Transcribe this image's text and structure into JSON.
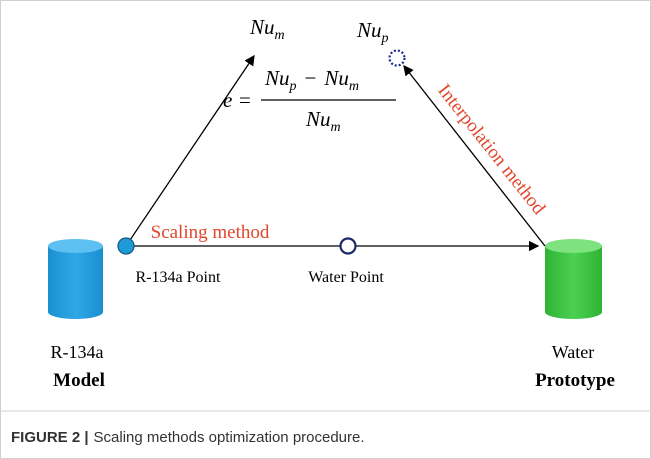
{
  "diagram": {
    "top_left": {
      "base": "Nu",
      "sub": "m"
    },
    "top_right": {
      "base": "Nu",
      "sub": "p"
    },
    "equation": {
      "lhs": "e =",
      "numerator": {
        "a": {
          "base": "Nu",
          "sub": "p"
        },
        "op": "−",
        "b": {
          "base": "Nu",
          "sub": "m"
        }
      },
      "denominator": {
        "base": "Nu",
        "sub": "m"
      }
    },
    "interpolation_label": "Interpolation method",
    "scaling_label": "Scaling method",
    "points": [
      "R-134a Point",
      "Water Point"
    ],
    "model": {
      "fluid": "R-134a",
      "name": "Model"
    },
    "prototype": {
      "fluid": "Water",
      "name": "Prototype"
    }
  },
  "caption": {
    "label": "FIGURE 2 |",
    "text": "Scaling methods optimization procedure."
  }
}
